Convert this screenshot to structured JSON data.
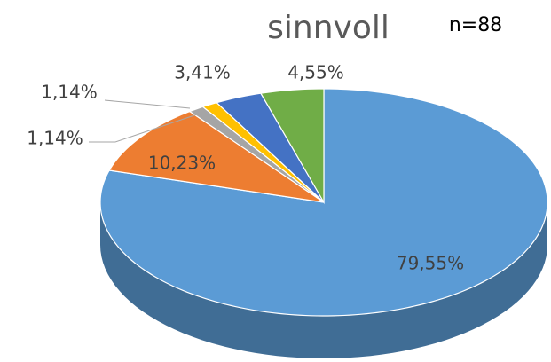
{
  "chart_data": {
    "type": "pie",
    "title": "sinnvoll",
    "annotation": "n=88",
    "categories": [
      "79,55%",
      "10,23%",
      "1,14%",
      "1,14%",
      "3,41%",
      "4,55%"
    ],
    "values": [
      79.55,
      10.23,
      1.14,
      1.14,
      3.41,
      4.55
    ],
    "value_labels": [
      "79,55%",
      "10,23%",
      "1,14%",
      "1,14%",
      "3,41%",
      "4,55%"
    ],
    "colors": [
      "#5b9bd5",
      "#ed7d31",
      "#a5a5a5",
      "#ffc000",
      "#4472c4",
      "#70ad47"
    ]
  }
}
